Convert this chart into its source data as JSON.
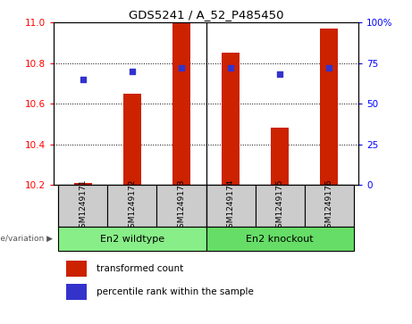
{
  "title": "GDS5241 / A_52_P485450",
  "samples": [
    "GSM1249171",
    "GSM1249172",
    "GSM1249173",
    "GSM1249174",
    "GSM1249175",
    "GSM1249176"
  ],
  "red_values": [
    10.21,
    10.65,
    11.0,
    10.85,
    10.48,
    10.97
  ],
  "blue_values": [
    65,
    70,
    72,
    72,
    68,
    72
  ],
  "y_min": 10.2,
  "y_max": 11.0,
  "y_ticks": [
    10.2,
    10.4,
    10.6,
    10.8,
    11
  ],
  "y2_ticks": [
    0,
    25,
    50,
    75,
    100
  ],
  "y2_labels": [
    "0",
    "25",
    "50",
    "75",
    "100%"
  ],
  "bar_color": "#cc2200",
  "dot_color": "#3333cc",
  "group1_label": "En2 wildtype",
  "group2_label": "En2 knockout",
  "group1_color": "#88ee88",
  "group2_color": "#66dd66",
  "genotype_label": "genotype/variation",
  "legend_red": "transformed count",
  "legend_blue": "percentile rank within the sample",
  "bar_width": 0.35,
  "base_value": 10.2,
  "sample_box_color": "#cccccc",
  "fig_bg": "#ffffff"
}
